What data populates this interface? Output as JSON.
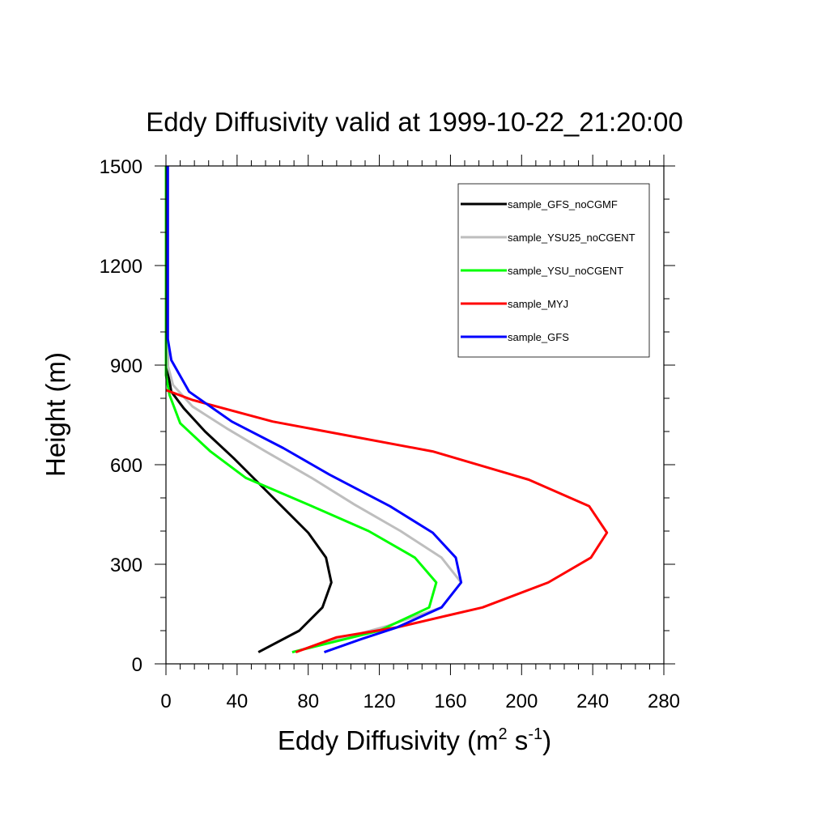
{
  "chart_data": {
    "type": "line",
    "title": "Eddy Diffusivity valid at 1999-10-22_21:20:00",
    "xlabel": {
      "base": "Eddy Diffusivity (m",
      "sup1": "2",
      "mid": " s",
      "sup2": "-1",
      "end": ")"
    },
    "ylabel": "Height (m)",
    "xlim": [
      0,
      280
    ],
    "ylim": [
      0,
      1500
    ],
    "xticks": [
      0,
      40,
      80,
      120,
      160,
      200,
      240,
      280
    ],
    "yticks": [
      0,
      300,
      600,
      900,
      1200,
      1500
    ],
    "xtick_labels": [
      "0",
      "40",
      "80",
      "120",
      "160",
      "200",
      "240",
      "280"
    ],
    "ytick_labels": [
      "0",
      "300",
      "600",
      "900",
      "1200",
      "1500"
    ],
    "legend_position": "top-right",
    "series": [
      {
        "name": "sample_GFS_noCGMF",
        "color": "#000000",
        "points": [
          [
            52,
            35
          ],
          [
            75,
            100
          ],
          [
            88,
            170
          ],
          [
            93,
            245
          ],
          [
            90,
            320
          ],
          [
            80,
            395
          ],
          [
            66,
            470
          ],
          [
            52,
            545
          ],
          [
            38,
            620
          ],
          [
            22,
            700
          ],
          [
            10,
            770
          ],
          [
            3,
            820
          ],
          [
            1,
            880
          ],
          [
            1,
            940
          ],
          [
            1,
            1000
          ],
          [
            1,
            1100
          ],
          [
            1,
            1200
          ],
          [
            1,
            1300
          ],
          [
            1,
            1400
          ],
          [
            1,
            1500
          ]
        ]
      },
      {
        "name": "sample_YSU25_noCGENT",
        "color": "#bebebe",
        "points": [
          [
            71,
            35
          ],
          [
            105,
            85
          ],
          [
            125,
            115
          ],
          [
            155,
            170
          ],
          [
            166,
            245
          ],
          [
            155,
            320
          ],
          [
            132,
            400
          ],
          [
            106,
            480
          ],
          [
            82,
            560
          ],
          [
            56,
            640
          ],
          [
            34,
            710
          ],
          [
            15,
            775
          ],
          [
            4,
            840
          ],
          [
            1,
            900
          ],
          [
            1,
            960
          ],
          [
            1,
            1100
          ],
          [
            1,
            1300
          ],
          [
            1,
            1500
          ]
        ]
      },
      {
        "name": "sample_YSU_noCGENT",
        "color": "#00ff00",
        "points": [
          [
            71,
            35
          ],
          [
            120,
            100
          ],
          [
            148,
            170
          ],
          [
            152,
            245
          ],
          [
            140,
            320
          ],
          [
            114,
            400
          ],
          [
            80,
            480
          ],
          [
            45,
            560
          ],
          [
            25,
            640
          ],
          [
            8,
            725
          ],
          [
            2,
            810
          ],
          [
            0,
            870
          ],
          [
            0,
            930
          ],
          [
            0,
            1100
          ],
          [
            0,
            1300
          ],
          [
            0,
            1500
          ]
        ]
      },
      {
        "name": "sample_MYJ",
        "color": "#ff0000",
        "points": [
          [
            73,
            35
          ],
          [
            96,
            80
          ],
          [
            130,
            110
          ],
          [
            158,
            145
          ],
          [
            178,
            170
          ],
          [
            215,
            245
          ],
          [
            239,
            320
          ],
          [
            248,
            395
          ],
          [
            238,
            475
          ],
          [
            204,
            555
          ],
          [
            150,
            640
          ],
          [
            60,
            730
          ],
          [
            15,
            795
          ],
          [
            0,
            825
          ]
        ]
      },
      {
        "name": "sample_GFS",
        "color": "#0000ff",
        "points": [
          [
            89,
            35
          ],
          [
            110,
            75
          ],
          [
            130,
            110
          ],
          [
            155,
            170
          ],
          [
            166,
            245
          ],
          [
            163,
            320
          ],
          [
            150,
            395
          ],
          [
            126,
            475
          ],
          [
            92,
            570
          ],
          [
            66,
            650
          ],
          [
            37,
            730
          ],
          [
            13,
            820
          ],
          [
            3,
            915
          ],
          [
            1,
            980
          ],
          [
            1,
            1100
          ],
          [
            1,
            1300
          ],
          [
            1,
            1500
          ]
        ]
      }
    ]
  }
}
